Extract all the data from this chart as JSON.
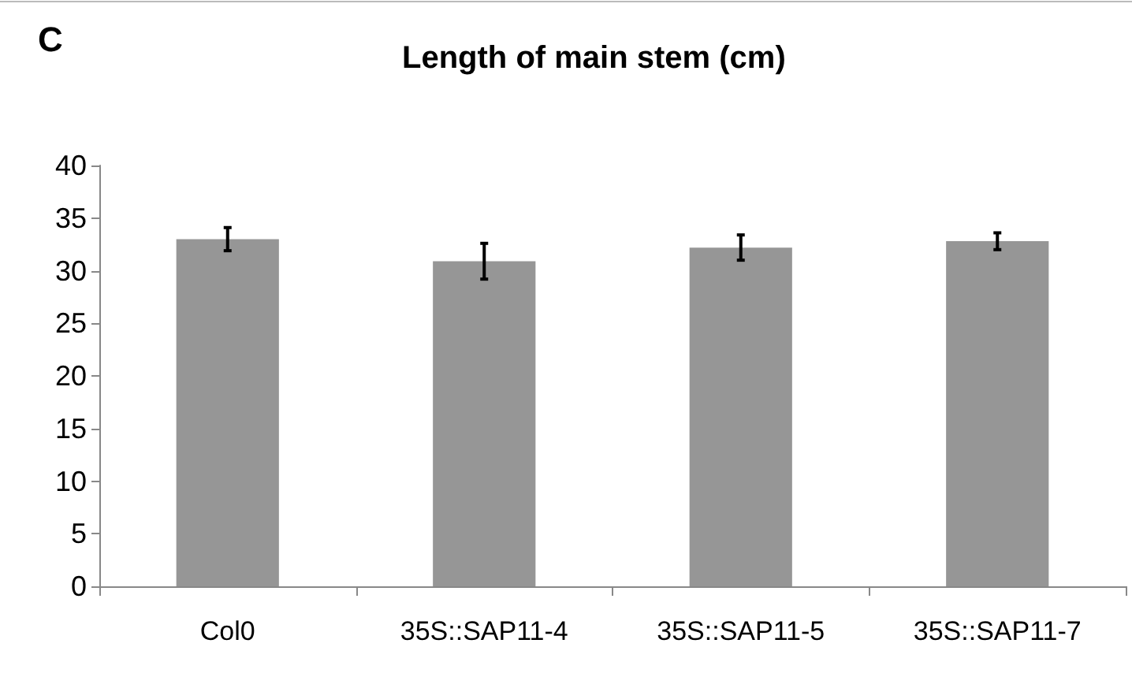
{
  "chart_data": {
    "type": "bar",
    "title": "Length of main stem (cm)",
    "annotations": [
      "C"
    ],
    "categories": [
      "Col0",
      "35S::SAP11-4",
      "35S::SAP11-5",
      "35S::SAP11-7"
    ],
    "values": [
      33.0,
      30.9,
      32.2,
      32.8
    ],
    "errors": [
      1.1,
      1.7,
      1.2,
      0.8
    ],
    "color": "#969696",
    "ylim": [
      0,
      40
    ],
    "yticks": [
      0,
      5,
      10,
      15,
      20,
      25,
      30,
      35,
      40
    ],
    "grid": false
  }
}
